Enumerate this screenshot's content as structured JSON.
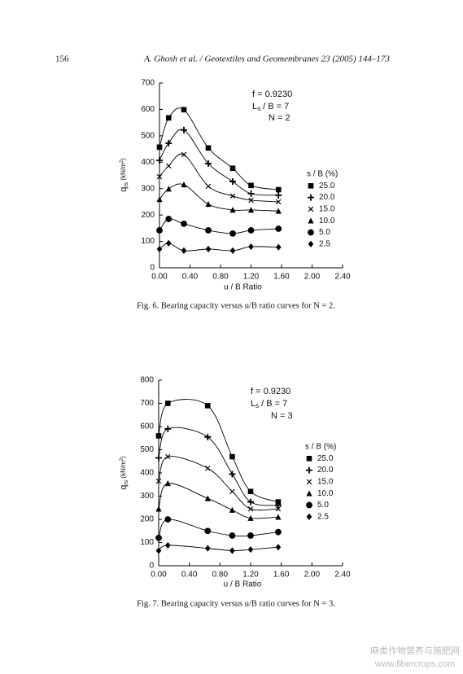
{
  "header": {
    "page_number": "156",
    "running_title": "A. Ghosh et al. / Geotextiles and Geomembranes 23 (2005) 144–173"
  },
  "chart_data": [
    {
      "type": "line",
      "caption": "Fig. 6. Bearing capacity versus u/B ratio curves for N = 2.",
      "annotations": [
        [
          "f = 0.9230"
        ],
        [
          "L",
          "s",
          " / B = 7"
        ],
        [
          "N = 2"
        ]
      ],
      "xlabel": "u / B Ratio",
      "ylabel": {
        "base": "q",
        "sub": "rs",
        "unit": " (kN/m",
        "sup": "2",
        "close": ")"
      },
      "legend_title": "s / B (%)",
      "x": [
        0,
        0.12,
        0.32,
        0.64,
        0.96,
        1.2,
        1.56
      ],
      "series": [
        {
          "name": "25.0",
          "marker": "square",
          "color": "#000000",
          "values": [
            457,
            568,
            599,
            454,
            377,
            312,
            296
          ]
        },
        {
          "name": "20.0",
          "marker": "plus",
          "color": "#000000",
          "values": [
            407,
            472,
            522,
            395,
            327,
            281,
            275
          ]
        },
        {
          "name": "15.0",
          "marker": "cross",
          "color": "#000000",
          "values": [
            345,
            386,
            429,
            309,
            272,
            256,
            250
          ]
        },
        {
          "name": "10.0",
          "marker": "triangle",
          "color": "#000000",
          "values": [
            259,
            299,
            315,
            241,
            219,
            219,
            215
          ]
        },
        {
          "name": "5.0",
          "marker": "circle",
          "color": "#000000",
          "values": [
            142,
            185,
            167,
            142,
            130,
            142,
            148
          ]
        },
        {
          "name": "2.5",
          "marker": "diamond",
          "color": "#000000",
          "values": [
            71,
            93,
            65,
            71,
            65,
            80,
            78
          ]
        }
      ],
      "xlim": [
        0,
        2.4
      ],
      "ylim": [
        0,
        700
      ],
      "xticks": [
        {
          "value": 0,
          "label": "0.00"
        },
        {
          "value": 0.4,
          "label": "0.40"
        },
        {
          "value": 0.8,
          "label": "0.80"
        },
        {
          "value": 1.2,
          "label": "1.20"
        },
        {
          "value": 1.6,
          "label": "1.60"
        },
        {
          "value": 2.0,
          "label": "2.00"
        },
        {
          "value": 2.4,
          "label": "2.40"
        }
      ],
      "yticks": [
        0,
        100,
        200,
        300,
        400,
        500,
        600,
        700
      ]
    },
    {
      "type": "line",
      "caption": "Fig. 7. Bearing capacity versus u/B ratio curves for N = 3.",
      "annotations": [
        [
          "f = 0.9230"
        ],
        [
          "L",
          "s",
          " / B = 7"
        ],
        [
          "N = 3"
        ]
      ],
      "xlabel": "u / B Ratio",
      "ylabel": {
        "base": "q",
        "sub": "rs",
        "unit": " (kN/m",
        "sup": "2",
        "close": ")"
      },
      "legend_title": "s / B (%)",
      "x": [
        0,
        0.12,
        0.64,
        0.96,
        1.2,
        1.56
      ],
      "series": [
        {
          "name": "25.0",
          "marker": "square",
          "color": "#000000",
          "values": [
            560,
            700,
            690,
            470,
            320,
            275
          ]
        },
        {
          "name": "20.0",
          "marker": "plus",
          "color": "#000000",
          "values": [
            465,
            590,
            555,
            395,
            275,
            260
          ]
        },
        {
          "name": "15.0",
          "marker": "cross",
          "color": "#000000",
          "values": [
            365,
            470,
            420,
            320,
            245,
            245
          ]
        },
        {
          "name": "10.0",
          "marker": "triangle",
          "color": "#000000",
          "values": [
            245,
            355,
            290,
            240,
            205,
            210
          ]
        },
        {
          "name": "5.0",
          "marker": "circle",
          "color": "#000000",
          "values": [
            120,
            200,
            150,
            130,
            130,
            145
          ]
        },
        {
          "name": "2.5",
          "marker": "diamond",
          "color": "#000000",
          "values": [
            65,
            88,
            75,
            65,
            70,
            80
          ]
        }
      ],
      "xlim": [
        0,
        2.4
      ],
      "ylim": [
        0,
        800
      ],
      "xticks": [
        {
          "value": 0,
          "label": "0.00"
        },
        {
          "value": 0.4,
          "label": "0.40"
        },
        {
          "value": 0.8,
          "label": "0.80"
        },
        {
          "value": 1.2,
          "label": "1.20"
        },
        {
          "value": 1.6,
          "label": "1.60"
        },
        {
          "value": 2.0,
          "label": "2.00"
        },
        {
          "value": 2.4,
          "label": "2.40"
        }
      ],
      "yticks": [
        0,
        100,
        200,
        300,
        400,
        500,
        600,
        700,
        800
      ]
    }
  ],
  "watermark": {
    "line1": "麻类作物营养与施肥网",
    "line2": "www.fibercrops.com"
  }
}
